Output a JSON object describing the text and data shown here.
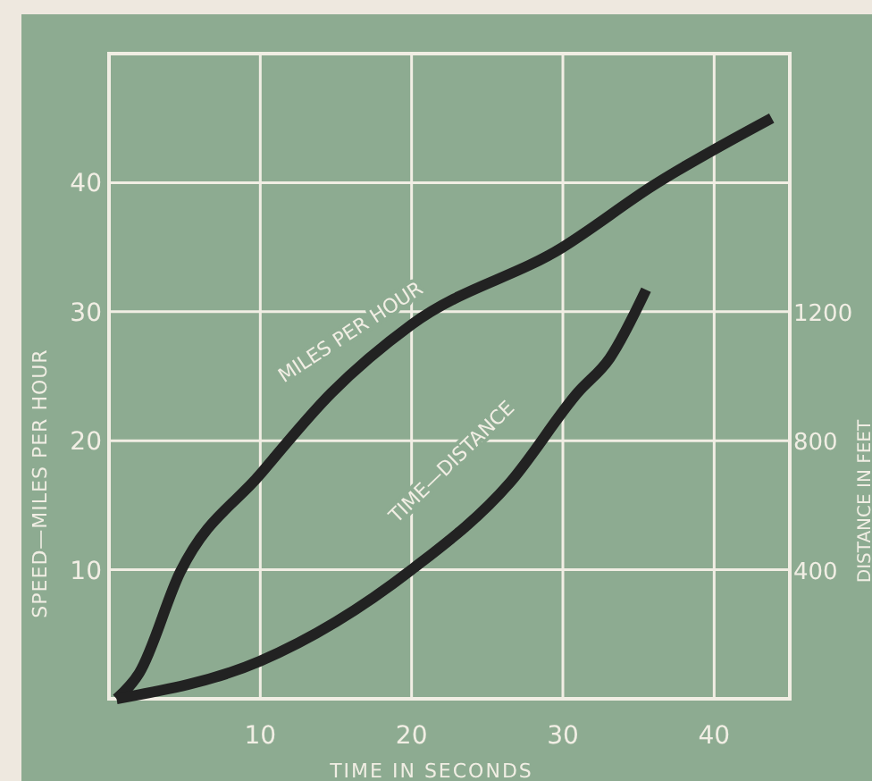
{
  "chart_data": {
    "type": "line",
    "xlabel": "TIME IN SECONDS",
    "ylabel": "SPEED—MILES PER HOUR",
    "y2label": "DISTANCE IN FEET",
    "xlim": [
      0,
      45
    ],
    "xticks": [
      10,
      20,
      30,
      40
    ],
    "ylim": [
      0,
      50
    ],
    "yticks": [
      10,
      20,
      30,
      40
    ],
    "y2lim": [
      0,
      2000
    ],
    "y2ticks": [
      400,
      800,
      1200
    ],
    "grid": true,
    "line_style": "solid",
    "series": [
      {
        "color": "#222222",
        "x": [
          0.5,
          2,
          4.7,
          10,
          14.7,
          20,
          30,
          36,
          43.8
        ],
        "values": [
          0,
          2,
          9.8,
          17.4,
          23.7,
          29,
          35,
          39.8,
          45
        ]
      },
      {
        "color": "#222222",
        "axis": "y2",
        "x": [
          0.5,
          10,
          20,
          26.5,
          31,
          33.1,
          35.5
        ],
        "values": [
          0,
          117,
          400,
          670,
          950,
          1056,
          1268
        ]
      }
    ],
    "annotations": [
      "MILES PER HOUR",
      "TIME—DISTANCE"
    ]
  }
}
